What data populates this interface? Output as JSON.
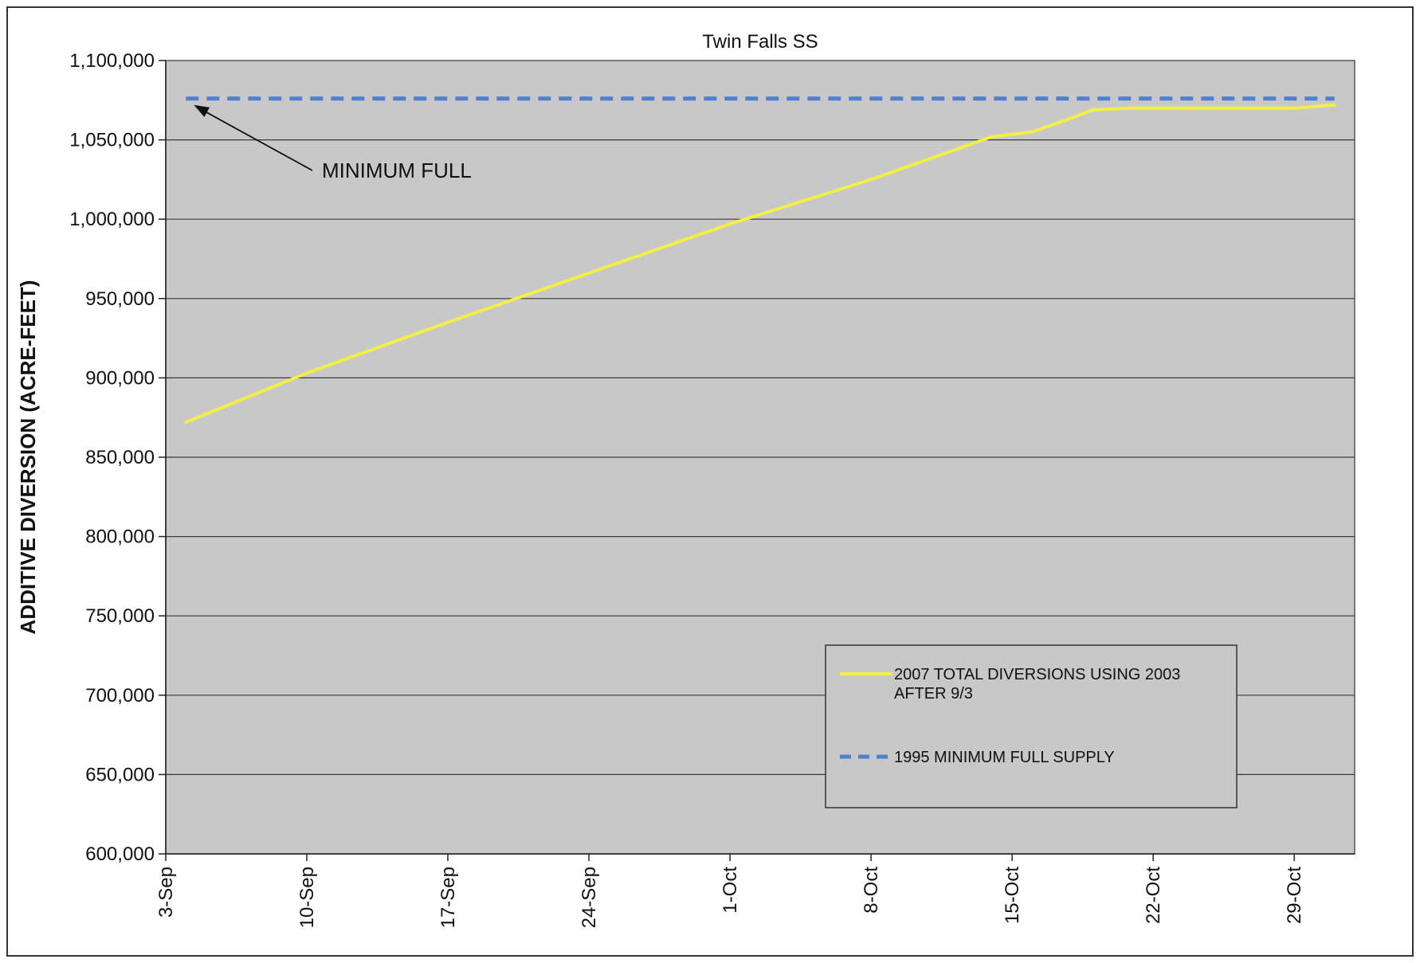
{
  "chart_data": {
    "type": "line",
    "title": "Twin Falls SS",
    "xlabel": "",
    "ylabel": "ADDITIVE DIVERSION (ACRE-FEET)",
    "x_ticks": [
      "3-Sep",
      "10-Sep",
      "17-Sep",
      "24-Sep",
      "1-Oct",
      "8-Oct",
      "15-Oct",
      "22-Oct",
      "29-Oct"
    ],
    "y_ticks": [
      "600,000",
      "650,000",
      "700,000",
      "750,000",
      "800,000",
      "850,000",
      "900,000",
      "950,000",
      "1,000,000",
      "1,050,000",
      "1,100,000"
    ],
    "ylim": [
      600000,
      1100000
    ],
    "xlim": [
      "3-Sep",
      "1-Nov"
    ],
    "grid": "horizontal",
    "legend_placement": "bottom-right",
    "background": "#c8c8c8",
    "series": [
      {
        "name": "2007 TOTAL DIVERSIONS USING 2003 AFTER 9/3",
        "style": "solid",
        "color": "#f2f044",
        "x": [
          "4-Sep",
          "10-Sep",
          "17-Sep",
          "24-Sep",
          "1-Oct",
          "8-Oct",
          "14-Oct",
          "16-Oct",
          "18-Oct",
          "19-Oct",
          "21-Oct",
          "29-Oct",
          "31-Oct"
        ],
        "y": [
          872000,
          903000,
          935000,
          966000,
          997000,
          1025000,
          1052000,
          1055000,
          1064000,
          1069000,
          1070000,
          1070000,
          1072000
        ]
      },
      {
        "name": "1995 MINIMUM FULL SUPPLY",
        "style": "dashed",
        "color": "#4f7fd0",
        "x": [
          "4-Sep",
          "31-Oct"
        ],
        "y": [
          1076000,
          1076000
        ]
      }
    ],
    "annotations": [
      {
        "text": "MINIMUM FULL",
        "points_to": {
          "x": "4-Sep",
          "y": 1076000
        }
      }
    ]
  }
}
